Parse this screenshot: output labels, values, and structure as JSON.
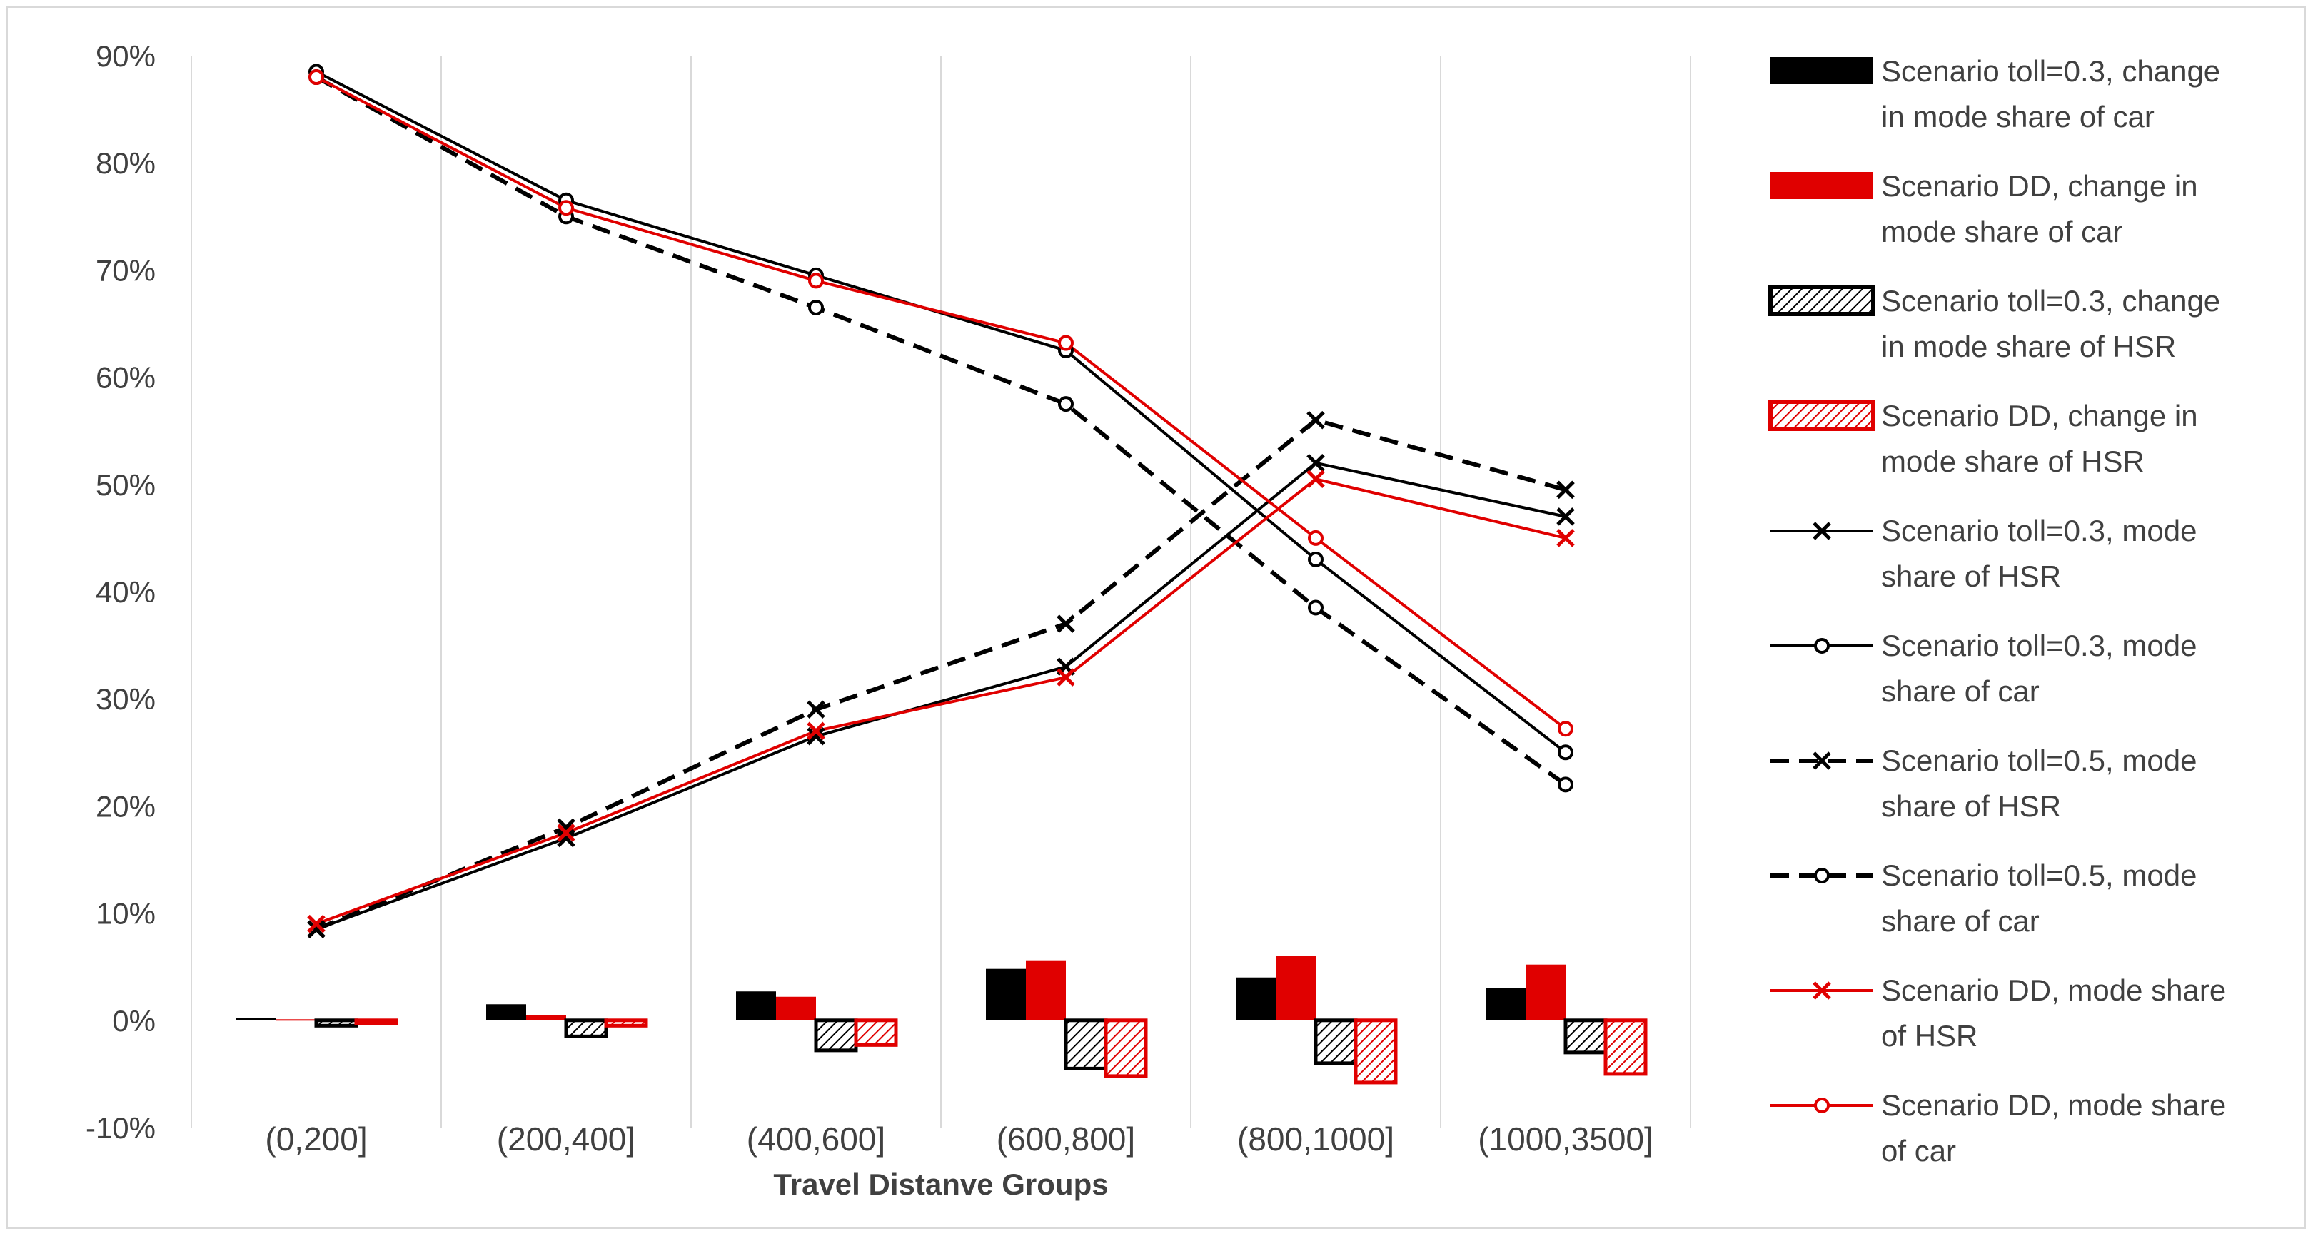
{
  "chart_data": {
    "type": "bar+line",
    "title": "",
    "xlabel": "Travel Distanve Groups",
    "ylabel": "",
    "ylim": [
      -10,
      90
    ],
    "yticks": [
      "-10%",
      "0%",
      "10%",
      "20%",
      "30%",
      "40%",
      "50%",
      "60%",
      "70%",
      "80%",
      "90%"
    ],
    "grid": "vertical category separators",
    "legend_position": "right",
    "categories": [
      "(0,200]",
      "(200,400]",
      "(400,600]",
      "(600,800]",
      "(800,1000]",
      "(1000,3500]"
    ],
    "bar_series": [
      {
        "name": "Scenario toll=0.3, change in mode share of car",
        "legend": [
          "Scenario toll=0.3, change",
          "in mode share of car"
        ],
        "color": "#000000",
        "pattern": "solid",
        "values": [
          0.2,
          1.5,
          2.7,
          4.8,
          4.0,
          3.0
        ]
      },
      {
        "name": "Scenario DD, change in mode share of car",
        "legend": [
          "Scenario DD, change in",
          "mode share of car"
        ],
        "color": "#e00000",
        "pattern": "solid",
        "values": [
          0.1,
          0.5,
          2.2,
          5.6,
          6.0,
          5.2
        ]
      },
      {
        "name": "Scenario toll=0.3, change in mode share of HSR",
        "legend": [
          "Scenario toll=0.3, change",
          "in mode share of HSR"
        ],
        "color": "#000000",
        "pattern": "hatched",
        "values": [
          -0.5,
          -1.5,
          -2.8,
          -4.5,
          -4.0,
          -3.0
        ]
      },
      {
        "name": "Scenario DD, change in mode share of HSR",
        "legend": [
          "Scenario DD, change in",
          "mode share of HSR"
        ],
        "color": "#e00000",
        "pattern": "hatched",
        "values": [
          -0.3,
          -0.5,
          -2.3,
          -5.2,
          -5.8,
          -5.0
        ]
      }
    ],
    "line_series": [
      {
        "name": "Scenario toll=0.3, mode share of HSR",
        "legend": [
          "Scenario toll=0.3, mode",
          "share of HSR"
        ],
        "color": "#000000",
        "dash": "solid",
        "marker": "x",
        "values": [
          8.5,
          17.0,
          26.5,
          33.0,
          52.0,
          47.0
        ]
      },
      {
        "name": "Scenario toll=0.3, mode share of car",
        "legend": [
          "Scenario toll=0.3, mode",
          "share of car"
        ],
        "color": "#000000",
        "dash": "solid",
        "marker": "o",
        "values": [
          88.5,
          76.5,
          69.5,
          62.5,
          43.0,
          25.0
        ]
      },
      {
        "name": "Scenario toll=0.5, mode share of HSR",
        "legend": [
          "Scenario toll=0.5, mode",
          "share of HSR"
        ],
        "color": "#000000",
        "dash": "dashed",
        "marker": "x",
        "values": [
          8.5,
          18.0,
          29.0,
          37.0,
          56.0,
          49.5
        ]
      },
      {
        "name": "Scenario toll=0.5, mode share of car",
        "legend": [
          "Scenario toll=0.5, mode",
          "share of car"
        ],
        "color": "#000000",
        "dash": "dashed",
        "marker": "o",
        "values": [
          88.0,
          75.0,
          66.5,
          57.5,
          38.5,
          22.0
        ]
      },
      {
        "name": "Scenario DD, mode share of HSR",
        "legend": [
          "Scenario DD, mode share",
          "of HSR"
        ],
        "color": "#e00000",
        "dash": "solid",
        "marker": "x",
        "values": [
          9.0,
          17.5,
          27.0,
          32.0,
          50.5,
          45.0
        ]
      },
      {
        "name": "Scenario DD, mode share of car",
        "legend": [
          "Scenario DD, mode share",
          "of car"
        ],
        "color": "#e00000",
        "dash": "solid",
        "marker": "o",
        "values": [
          88.0,
          75.8,
          69.0,
          63.2,
          45.0,
          27.2
        ]
      }
    ]
  }
}
